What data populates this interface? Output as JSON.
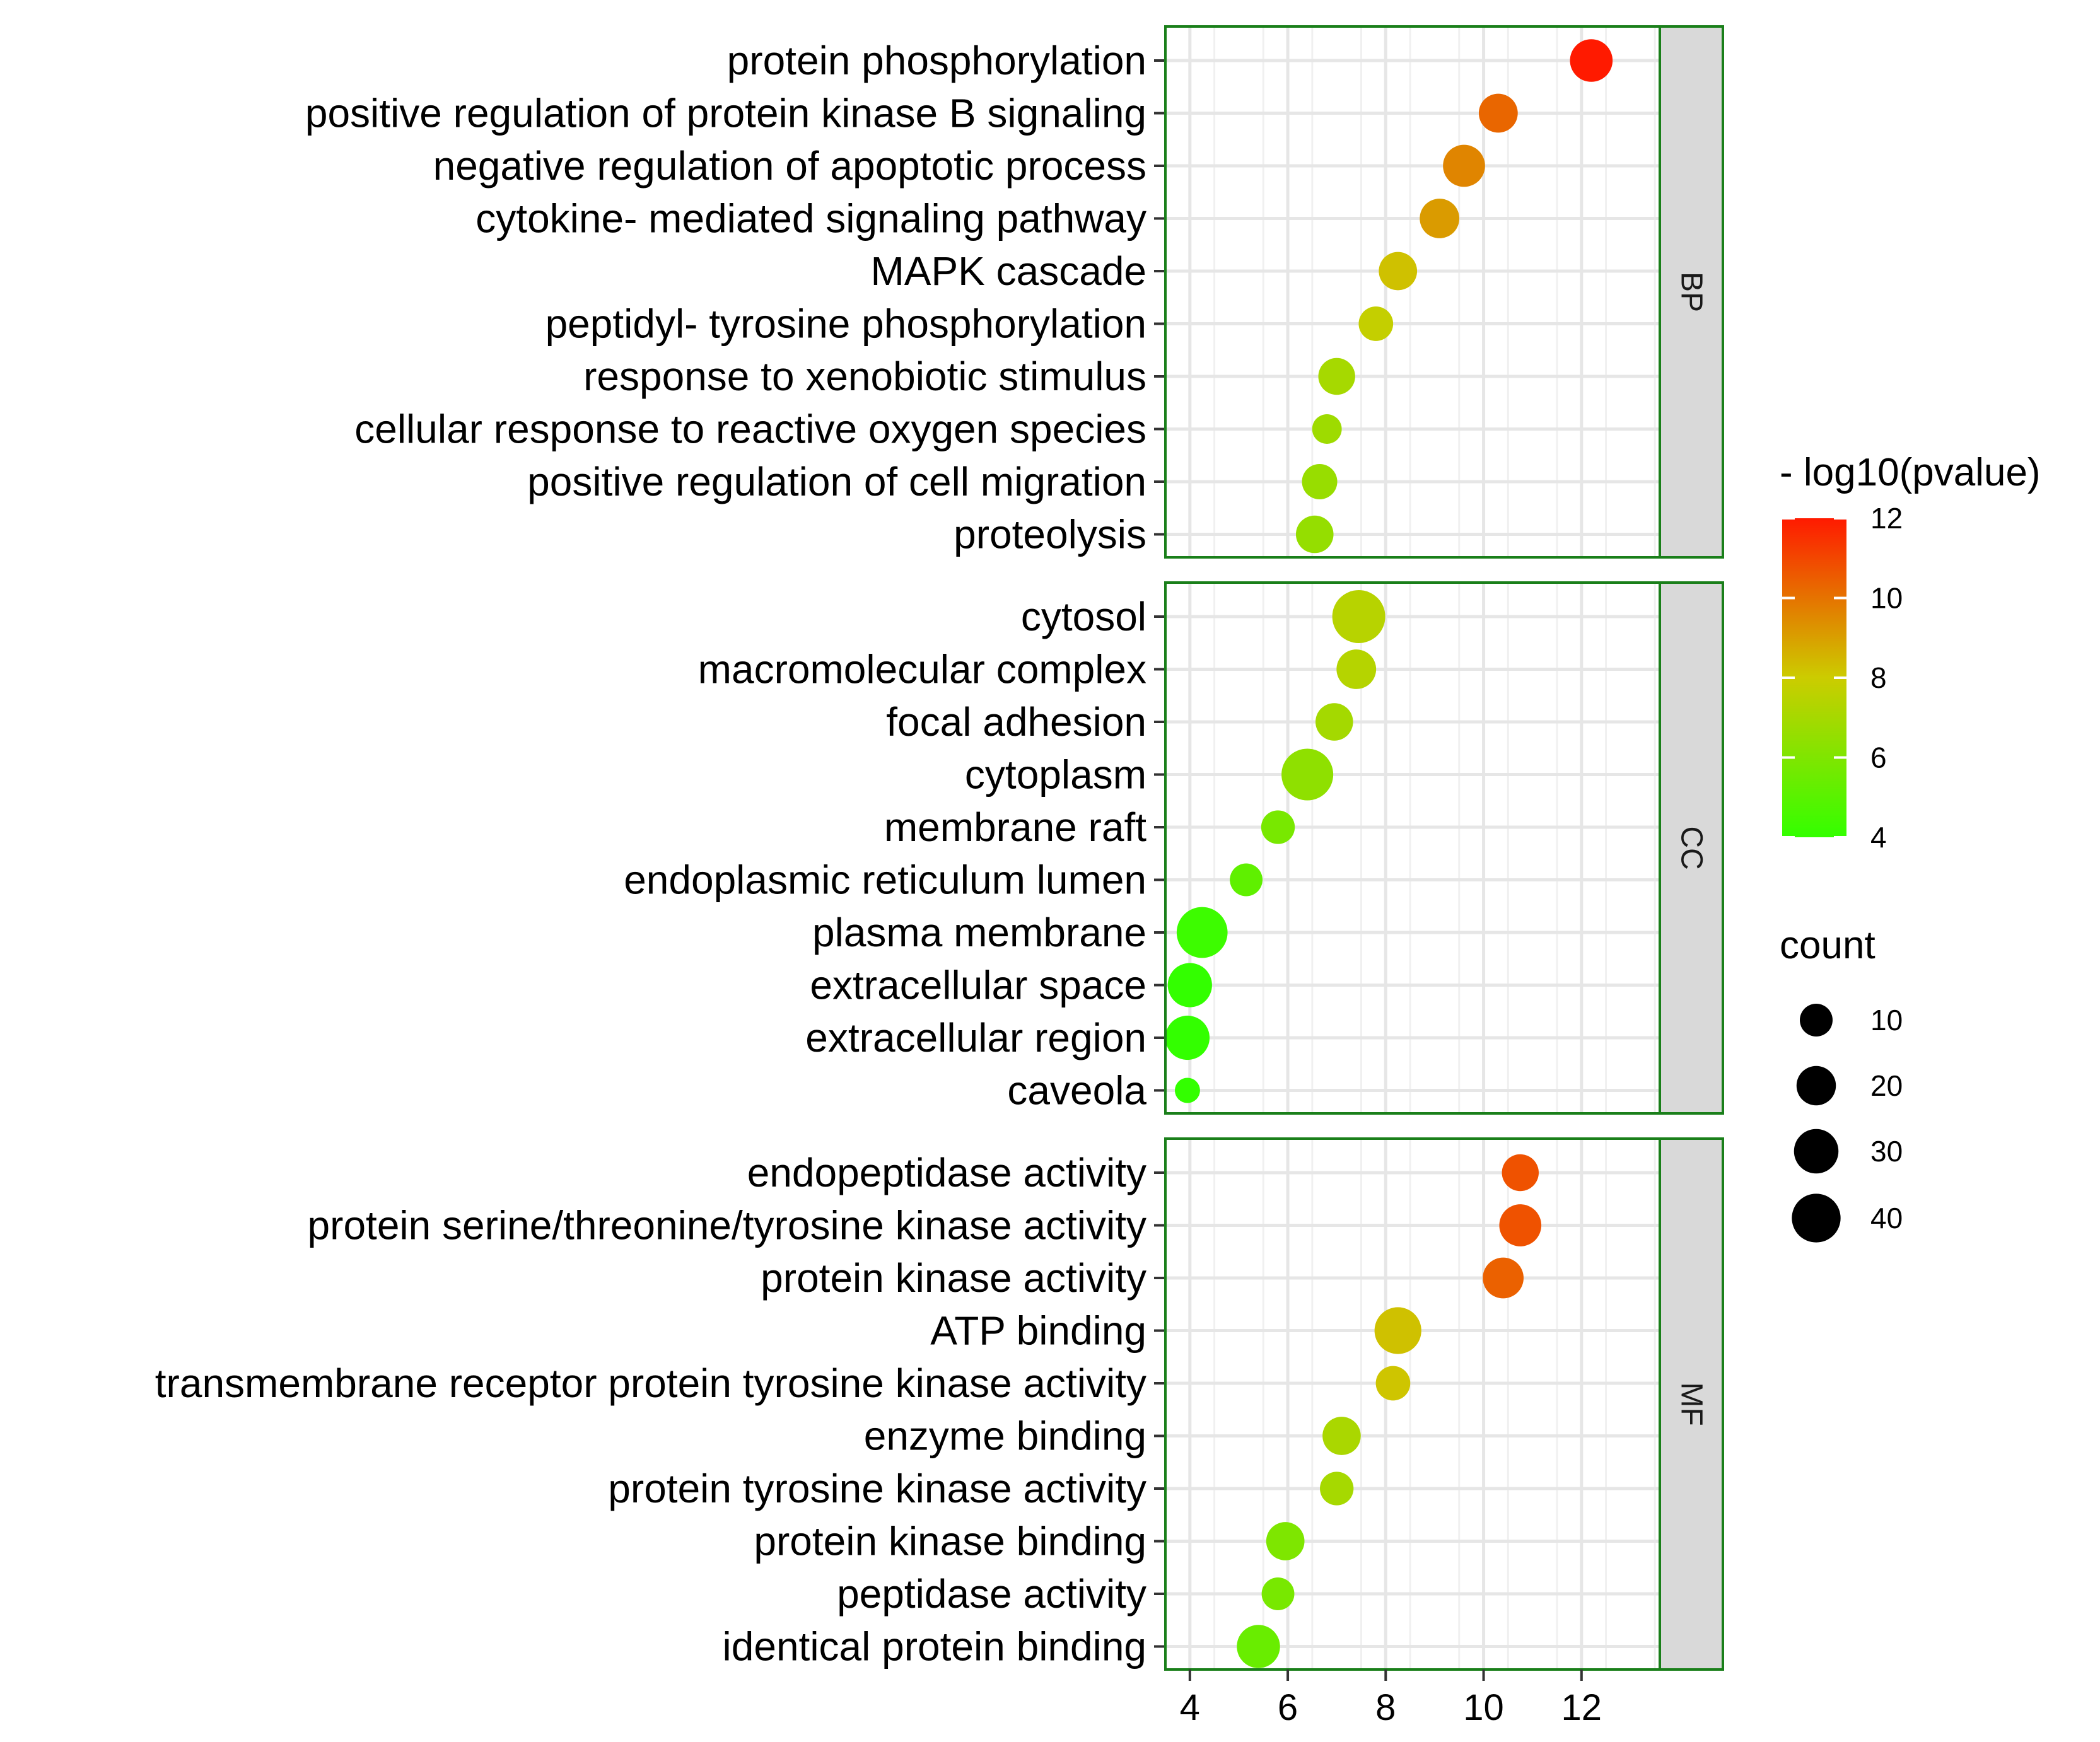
{
  "chart_data": {
    "type": "scatter",
    "x_axis": {
      "range": [
        3.5,
        13.6
      ],
      "ticks": [
        4,
        6,
        8,
        10,
        12
      ],
      "label": ""
    },
    "color_scale": {
      "title": "- log10(pvalue)",
      "min": 4,
      "max": 12,
      "ticks": [
        4,
        6,
        8,
        10,
        12
      ],
      "colors": [
        "#33ff00",
        "#cccc00",
        "#ff1a00"
      ]
    },
    "size_legend": {
      "title": "count",
      "values": [
        10,
        20,
        30,
        40
      ]
    },
    "panels": [
      {
        "name": "BP",
        "terms": [
          {
            "label": "protein phosphorylation",
            "x": 12.2,
            "count": 22,
            "pvalue": 12.2
          },
          {
            "label": "positive regulation of protein kinase B signaling",
            "x": 10.3,
            "count": 16,
            "pvalue": 10.3
          },
          {
            "label": "negative regulation of apoptotic process",
            "x": 9.6,
            "count": 21,
            "pvalue": 9.6
          },
          {
            "label": "cytokine- mediated signaling pathway",
            "x": 9.1,
            "count": 17,
            "pvalue": 9.1
          },
          {
            "label": "MAPK cascade",
            "x": 8.25,
            "count": 15,
            "pvalue": 8.25
          },
          {
            "label": "peptidyl- tyrosine phosphorylation",
            "x": 7.8,
            "count": 10,
            "pvalue": 7.8
          },
          {
            "label": "response to xenobiotic stimulus",
            "x": 7.0,
            "count": 13,
            "pvalue": 7.0
          },
          {
            "label": "cellular response to reactive oxygen species",
            "x": 6.8,
            "count": 5,
            "pvalue": 6.8
          },
          {
            "label": "positive regulation of cell migration",
            "x": 6.65,
            "count": 11,
            "pvalue": 6.65
          },
          {
            "label": "proteolysis",
            "x": 6.55,
            "count": 14,
            "pvalue": 6.55
          }
        ]
      },
      {
        "name": "CC",
        "terms": [
          {
            "label": "cytosol",
            "x": 7.45,
            "count": 44,
            "pvalue": 7.45
          },
          {
            "label": "macromolecular complex",
            "x": 7.4,
            "count": 17,
            "pvalue": 7.4
          },
          {
            "label": "focal adhesion",
            "x": 6.95,
            "count": 14,
            "pvalue": 6.95
          },
          {
            "label": "cytoplasm",
            "x": 6.4,
            "count": 41,
            "pvalue": 6.4
          },
          {
            "label": "membrane raft",
            "x": 5.8,
            "count": 9,
            "pvalue": 5.8
          },
          {
            "label": "endoplasmic reticulum lumen",
            "x": 5.15,
            "count": 8,
            "pvalue": 5.15
          },
          {
            "label": "plasma membrane",
            "x": 4.25,
            "count": 39,
            "pvalue": 4.25
          },
          {
            "label": "extracellular space",
            "x": 4.0,
            "count": 25,
            "pvalue": 4.0
          },
          {
            "label": "extracellular region",
            "x": 3.95,
            "count": 25,
            "pvalue": 3.95
          },
          {
            "label": "caveola",
            "x": 3.95,
            "count": 2,
            "pvalue": 3.95
          }
        ]
      },
      {
        "name": "MF",
        "terms": [
          {
            "label": "endopeptidase activity",
            "x": 10.75,
            "count": 13,
            "pvalue": 10.75
          },
          {
            "label": "protein serine/threonine/tyrosine kinase activity",
            "x": 10.75,
            "count": 21,
            "pvalue": 10.75
          },
          {
            "label": "protein kinase activity",
            "x": 10.4,
            "count": 19,
            "pvalue": 10.4
          },
          {
            "label": "ATP binding",
            "x": 8.25,
            "count": 30,
            "pvalue": 8.25
          },
          {
            "label": "transmembrane receptor protein tyrosine kinase activity",
            "x": 8.15,
            "count": 10,
            "pvalue": 8.15
          },
          {
            "label": "enzyme binding",
            "x": 7.1,
            "count": 15,
            "pvalue": 7.1
          },
          {
            "label": "protein tyrosine kinase activity",
            "x": 7.0,
            "count": 9,
            "pvalue": 7.0
          },
          {
            "label": "protein kinase binding",
            "x": 5.95,
            "count": 15,
            "pvalue": 5.95
          },
          {
            "label": "peptidase activity",
            "x": 5.8,
            "count": 8,
            "pvalue": 5.8
          },
          {
            "label": "identical protein binding",
            "x": 5.4,
            "count": 23,
            "pvalue": 5.4
          }
        ]
      }
    ]
  }
}
